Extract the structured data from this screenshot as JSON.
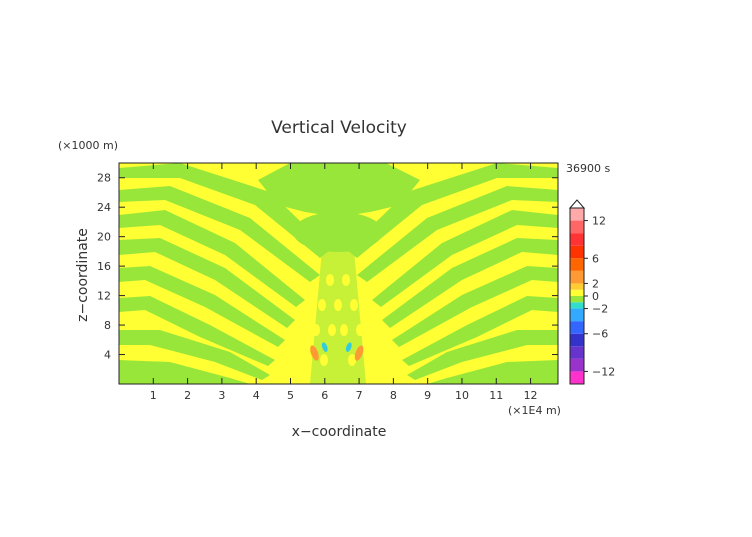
{
  "chart_data": {
    "type": "heatmap",
    "title": "Vertical Velocity",
    "xlabel": "x−coordinate",
    "ylabel": "z−coordinate",
    "x_unit": "(×1E4 m)",
    "y_unit": "(×1000 m)",
    "time_label": "36900 s",
    "xlim": [
      0,
      12.8
    ],
    "ylim": [
      0,
      30
    ],
    "x_ticks": [
      1,
      2,
      3,
      4,
      5,
      6,
      7,
      8,
      9,
      10,
      11,
      12
    ],
    "y_ticks": [
      4,
      8,
      12,
      16,
      20,
      24,
      28
    ],
    "field_colors": {
      "positive": "#ffff33",
      "negative": "#99e63a"
    },
    "colorbar": {
      "vmin": -14,
      "vmax": 14,
      "tick_values": [
        12,
        6,
        2,
        0,
        -2,
        -6,
        -12
      ],
      "tick_labels": [
        "12",
        "6",
        "2",
        "0",
        "−2",
        "−6",
        "−12"
      ],
      "levels": [
        {
          "from": -14,
          "to": -12,
          "color": "#ff33cc"
        },
        {
          "from": -12,
          "to": -10,
          "color": "#9933cc"
        },
        {
          "from": -10,
          "to": -8,
          "color": "#6633cc"
        },
        {
          "from": -8,
          "to": -6,
          "color": "#3333cc"
        },
        {
          "from": -6,
          "to": -4,
          "color": "#3366ff"
        },
        {
          "from": -4,
          "to": -2,
          "color": "#33aaff"
        },
        {
          "from": -2,
          "to": -1,
          "color": "#33ddcc"
        },
        {
          "from": -1,
          "to": 0,
          "color": "#99e63a"
        },
        {
          "from": 0,
          "to": 1,
          "color": "#ffff33"
        },
        {
          "from": 1,
          "to": 2,
          "color": "#ffcc33"
        },
        {
          "from": 2,
          "to": 4,
          "color": "#ff9933"
        },
        {
          "from": 4,
          "to": 6,
          "color": "#ff6600"
        },
        {
          "from": 6,
          "to": 8,
          "color": "#ff3300"
        },
        {
          "from": 8,
          "to": 10,
          "color": "#ff3333"
        },
        {
          "from": 10,
          "to": 12,
          "color": "#ff6666"
        },
        {
          "from": 12,
          "to": 14,
          "color": "#ffaaaa"
        }
      ]
    },
    "features": [
      {
        "kind": "downdraft",
        "x": 5.7,
        "z": 4.2,
        "value": 3,
        "color": "#ff9933"
      },
      {
        "kind": "downdraft",
        "x": 7.0,
        "z": 4.2,
        "value": 3,
        "color": "#ff9933"
      },
      {
        "kind": "updraft",
        "x": 6.0,
        "z": 5.0,
        "value": -2,
        "color": "#33ccdd"
      },
      {
        "kind": "updraft",
        "x": 6.7,
        "z": 5.0,
        "value": -2,
        "color": "#33ccdd"
      }
    ]
  }
}
